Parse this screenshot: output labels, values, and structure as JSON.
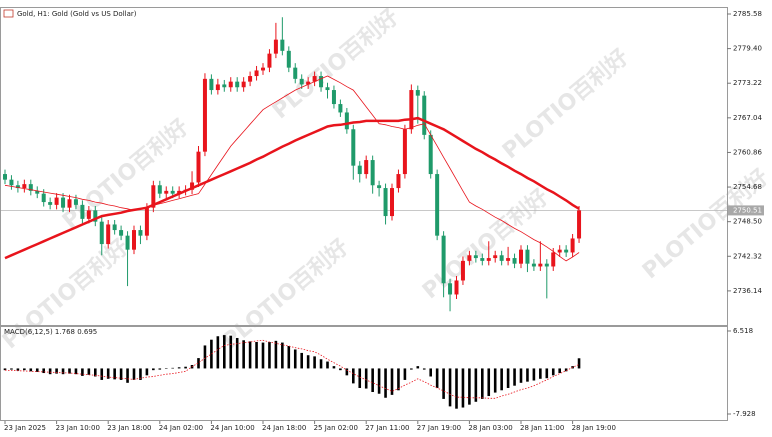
{
  "watermark": {
    "brand": "PLOTIO",
    "name": "百利好"
  },
  "chart_data": [
    {
      "type": "candlestick",
      "title": "Gold, H1: Gold (Gold vs US Dollar)",
      "categories": [
        "23 Jan 2025",
        null,
        null,
        null,
        null,
        null,
        null,
        null,
        "23 Jan 10:00",
        null,
        null,
        null,
        null,
        null,
        null,
        null,
        "23 Jan 18:00",
        null,
        null,
        null,
        null,
        null,
        null,
        null,
        "24 Jan 02:00",
        null,
        null,
        null,
        null,
        null,
        null,
        null,
        "24 Jan 10:00",
        null,
        null,
        null,
        null,
        null,
        null,
        null,
        "24 Jan 18:00",
        null,
        null,
        null,
        null,
        null,
        null,
        null,
        "25 Jan 02:00",
        null,
        null,
        null,
        null,
        null,
        null,
        null,
        "27 Jan 11:00",
        null,
        null,
        null,
        null,
        null,
        null,
        null,
        "27 Jan 19:00",
        null,
        null,
        null,
        null,
        null,
        null,
        null,
        "28 Jan 03:00",
        null,
        null,
        null,
        null,
        null,
        null,
        null,
        "28 Jan 11:00",
        null,
        null,
        null,
        null,
        null,
        null,
        null,
        "28 Jan 19:00",
        null
      ],
      "open": [
        2757.0,
        2756.0,
        2755.0,
        2754.5,
        2755.2,
        2754.0,
        2753.5,
        2752.0,
        2751.5,
        2752.8,
        2751.0,
        2752.5,
        2751.5,
        2749.0,
        2750.5,
        2748.5,
        2744.5,
        2748.0,
        2747.0,
        2746.0,
        2743.5,
        2747.0,
        2746.0,
        2751.0,
        2755.0,
        2753.5,
        2754.0,
        2753.5,
        2754.0,
        2754.2,
        2755.5,
        2761.0,
        2774.0,
        2772.0,
        2773.0,
        2772.5,
        2773.5,
        2772.5,
        2773.5,
        2774.5,
        2775.5,
        2776.0,
        2778.5,
        2781.0,
        2779.0,
        2776.0,
        2774.0,
        2773.0,
        2773.5,
        2774.5,
        2772.5,
        2772.0,
        2769.5,
        2768.0,
        2765.0,
        2758.5,
        2757.0,
        2759.5,
        2755.0,
        2754.5,
        2749.5,
        2754.5,
        2757.0,
        2765.0,
        2772.0,
        2771.0,
        2764.0,
        2757.0,
        2746.0,
        2737.5,
        2735.5,
        2738.0,
        2741.5,
        2742.5,
        2742.0,
        2741.5,
        2742.0,
        2742.5,
        2741.5,
        2742.0,
        2741.0,
        2743.5,
        2741.0,
        2740.5,
        2741.0,
        2740.5,
        2743.0,
        2743.5,
        2743.0,
        2745.5
      ],
      "high": [
        2757.8,
        2756.8,
        2755.8,
        2756.0,
        2756.0,
        2754.8,
        2754.3,
        2752.8,
        2753.6,
        2753.6,
        2753.3,
        2753.3,
        2752.3,
        2751.3,
        2751.3,
        2749.3,
        2748.8,
        2748.8,
        2747.8,
        2746.8,
        2747.8,
        2747.8,
        2751.8,
        2755.8,
        2755.8,
        2754.8,
        2754.8,
        2754.8,
        2755.0,
        2757.5,
        2762.0,
        2775.0,
        2774.8,
        2774.0,
        2773.8,
        2774.3,
        2774.3,
        2774.3,
        2775.3,
        2776.3,
        2776.8,
        2779.3,
        2784.0,
        2785.0,
        2779.8,
        2776.8,
        2774.8,
        2774.3,
        2775.3,
        2775.3,
        2773.3,
        2772.8,
        2770.3,
        2768.8,
        2765.8,
        2759.3,
        2760.3,
        2760.3,
        2755.8,
        2755.3,
        2755.3,
        2757.8,
        2765.8,
        2773.0,
        2772.8,
        2771.8,
        2764.8,
        2757.8,
        2746.8,
        2738.3,
        2738.8,
        2742.3,
        2743.3,
        2743.3,
        2742.8,
        2745.0,
        2743.3,
        2743.3,
        2744.0,
        2742.8,
        2744.3,
        2744.3,
        2741.8,
        2745.0,
        2741.8,
        2743.8,
        2744.3,
        2744.3,
        2746.3,
        2751.3
      ],
      "low": [
        2755.2,
        2754.2,
        2753.7,
        2753.7,
        2753.2,
        2752.7,
        2751.2,
        2750.7,
        2750.7,
        2750.2,
        2750.2,
        2750.7,
        2748.2,
        2748.2,
        2747.7,
        2742.5,
        2743.7,
        2746.2,
        2745.2,
        2737.0,
        2742.7,
        2744.5,
        2745.2,
        2750.2,
        2752.7,
        2752.7,
        2752.7,
        2752.7,
        2753.2,
        2753.4,
        2754.7,
        2760.2,
        2771.2,
        2771.2,
        2771.7,
        2771.7,
        2771.7,
        2771.7,
        2772.7,
        2773.7,
        2774.7,
        2775.2,
        2777.7,
        2778.2,
        2775.2,
        2773.2,
        2772.2,
        2772.2,
        2772.7,
        2771.7,
        2770.5,
        2768.7,
        2767.2,
        2764.2,
        2756.0,
        2755.5,
        2756.2,
        2753.5,
        2753.0,
        2748.0,
        2748.7,
        2753.7,
        2756.2,
        2764.2,
        2766.0,
        2763.2,
        2756.2,
        2745.2,
        2735.0,
        2732.5,
        2734.7,
        2737.2,
        2740.7,
        2741.2,
        2740.7,
        2740.7,
        2741.2,
        2740.7,
        2740.7,
        2740.2,
        2740.2,
        2739.5,
        2739.7,
        2739.7,
        2734.8,
        2739.7,
        2742.2,
        2742.2,
        2742.2,
        2744.7
      ],
      "close": [
        2756.0,
        2755.0,
        2754.5,
        2755.2,
        2754.0,
        2753.5,
        2752.0,
        2751.5,
        2752.8,
        2751.0,
        2752.5,
        2751.5,
        2749.0,
        2750.5,
        2748.5,
        2744.5,
        2748.0,
        2747.0,
        2746.0,
        2743.5,
        2747.0,
        2746.0,
        2751.0,
        2755.0,
        2753.5,
        2754.0,
        2753.5,
        2754.0,
        2754.2,
        2755.5,
        2761.0,
        2774.0,
        2772.0,
        2773.0,
        2772.5,
        2773.5,
        2772.5,
        2773.5,
        2774.5,
        2775.5,
        2776.0,
        2778.5,
        2781.0,
        2779.0,
        2776.0,
        2774.0,
        2773.0,
        2773.5,
        2774.5,
        2772.5,
        2772.0,
        2769.5,
        2768.0,
        2765.0,
        2758.5,
        2757.0,
        2759.5,
        2755.0,
        2754.5,
        2749.5,
        2754.5,
        2757.0,
        2765.0,
        2772.0,
        2771.0,
        2764.0,
        2757.0,
        2746.0,
        2737.5,
        2735.5,
        2738.0,
        2741.5,
        2742.5,
        2742.0,
        2741.5,
        2742.0,
        2742.5,
        2741.5,
        2742.0,
        2741.0,
        2743.5,
        2741.0,
        2740.5,
        2741.0,
        2740.5,
        2743.0,
        2743.5,
        2743.0,
        2745.5,
        2750.51
      ],
      "up_color": "#e8141c",
      "down_color": "#1f9a6a",
      "lines": [
        {
          "color": "#e8141c",
          "width": 0.8,
          "values": [
            2755,
            2754.8,
            2754.6,
            2754.4,
            2754.2,
            2754,
            2753.8,
            2753.6,
            2753.4,
            2753.2,
            2753,
            2752.8,
            2752.5,
            2752.3,
            2752,
            2751.8,
            2751.5,
            2751.3,
            2751,
            2750.8,
            2750.5,
            2750.8,
            2751.1,
            2751.4,
            2751.7,
            2752,
            2752.3,
            2752.6,
            2752.9,
            2753.2,
            2753.5,
            2755.2,
            2756.9,
            2758.6,
            2760.3,
            2762,
            2763.3,
            2764.6,
            2765.9,
            2767.2,
            2768.5,
            2769.2,
            2769.9,
            2770.6,
            2771.3,
            2772,
            2772.5,
            2773,
            2773.5,
            2774,
            2774.5,
            2773.9,
            2773.3,
            2772.6,
            2772,
            2770.5,
            2769,
            2767.5,
            2766,
            2765.8,
            2765.5,
            2765.3,
            2765,
            2765.3,
            2765.7,
            2766,
            2764,
            2762,
            2760,
            2758,
            2756,
            2754,
            2752,
            2751.3,
            2750.7,
            2750,
            2749.3,
            2748.7,
            2748,
            2747.3,
            2746.7,
            2746,
            2745.3,
            2744.7,
            2744,
            2743.2,
            2742.3,
            2741.5,
            2742.2,
            2743
          ]
        },
        {
          "color": "#e8141c",
          "width": 2.5,
          "values": [
            2742,
            2742.5,
            2743,
            2743.5,
            2744,
            2744.5,
            2745,
            2745.5,
            2746,
            2746.5,
            2747,
            2747.5,
            2748,
            2748.5,
            2749,
            2749.5,
            2749.7,
            2749.9,
            2750.1,
            2750.4,
            2750.6,
            2750.8,
            2751,
            2751.5,
            2752,
            2752.5,
            2753,
            2753.5,
            2754,
            2754.5,
            2755,
            2755.5,
            2756,
            2756.5,
            2757,
            2757.5,
            2758,
            2758.5,
            2759,
            2759.6,
            2760.1,
            2760.7,
            2761.3,
            2761.9,
            2762.4,
            2763,
            2763.5,
            2764,
            2764.5,
            2765,
            2765.5,
            2765.7,
            2765.8,
            2766,
            2766.2,
            2766.3,
            2766.5,
            2766.5,
            2766.5,
            2766.5,
            2766.5,
            2766.5,
            2766.7,
            2766.8,
            2767,
            2766.5,
            2766,
            2765.5,
            2765,
            2764.3,
            2763.6,
            2762.9,
            2762.2,
            2761.5,
            2760.9,
            2760.2,
            2759.6,
            2758.9,
            2758.3,
            2757.6,
            2757,
            2756.3,
            2755.7,
            2755,
            2754.3,
            2753.7,
            2753,
            2752.3,
            2751.5,
            2750.8
          ]
        }
      ],
      "current_price": 2750.51,
      "ylim": [
        2730.05,
        2786.65
      ],
      "yticks": [
        2785.58,
        {
          "value": 2779.4,
          "label": "2779.40"
        },
        2773.22,
        2767.04,
        2760.86,
        2754.68,
        {
          "value": 2748.5,
          "label": "2748.50"
        },
        2742.32,
        2736.14
      ]
    },
    {
      "type": "bar",
      "title": "MACD(6,12,5) 1.768 0.695",
      "color": "#000000",
      "values": [
        -0.3,
        -0.2,
        -0.4,
        -0.3,
        -0.5,
        -0.6,
        -0.8,
        -1.0,
        -0.9,
        -1.0,
        -0.9,
        -1.0,
        -1.3,
        -1.1,
        -1.4,
        -2.0,
        -1.8,
        -1.9,
        -2.0,
        -2.5,
        -2.0,
        -2.0,
        -1.2,
        -0.3,
        -0.2,
        0.0,
        0.1,
        0.2,
        0.3,
        0.6,
        1.8,
        4.0,
        5.0,
        5.6,
        5.8,
        5.7,
        5.3,
        4.9,
        4.7,
        4.6,
        4.5,
        4.6,
        4.8,
        4.5,
        3.9,
        3.3,
        2.7,
        2.3,
        2.1,
        1.6,
        1.2,
        0.4,
        -0.3,
        -1.2,
        -2.6,
        -3.4,
        -3.5,
        -4.1,
        -4.4,
        -5.1,
        -4.6,
        -3.8,
        -2.0,
        -0.2,
        0.4,
        -0.2,
        -1.4,
        -3.4,
        -5.3,
        -6.6,
        -7.0,
        -6.8,
        -6.3,
        -5.8,
        -5.3,
        -4.8,
        -4.2,
        -3.8,
        -3.4,
        -3.0,
        -2.5,
        -2.3,
        -2.1,
        -1.8,
        -1.7,
        -1.2,
        -0.8,
        -0.5,
        0.4,
        1.768
      ],
      "signal": {
        "color": "#e8141c",
        "values": [
          -0.3,
          -0.35,
          -0.4,
          -0.45,
          -0.5,
          -0.55,
          -0.6,
          -0.65,
          -0.7,
          -0.75,
          -0.8,
          -0.9,
          -1.0,
          -1.1,
          -1.2,
          -1.35,
          -1.5,
          -1.6,
          -1.7,
          -1.8,
          -1.9,
          -1.7,
          -1.5,
          -1.4,
          -1.2,
          -1.0,
          -0.9,
          -0.7,
          -0.5,
          0.3,
          1.0,
          1.8,
          2.5,
          3.3,
          4.0,
          4.2,
          4.3,
          4.5,
          4.6,
          4.8,
          4.9,
          4.6,
          4.4,
          4.1,
          3.9,
          3.6,
          3.4,
          3.1,
          2.9,
          2.3,
          1.6,
          1.0,
          0.4,
          -0.3,
          -0.9,
          -1.5,
          -2.0,
          -2.5,
          -3.0,
          -3.5,
          -4.0,
          -3.5,
          -2.9,
          -2.4,
          -1.8,
          -2.3,
          -2.9,
          -3.4,
          -3.9,
          -4.5,
          -5.0,
          -5.0,
          -5.1,
          -5.1,
          -5.1,
          -5.2,
          -5.2,
          -4.8,
          -4.5,
          -4.1,
          -3.7,
          -3.4,
          -3.0,
          -2.5,
          -2.0,
          -1.4,
          -0.9,
          -0.4,
          0.2,
          0.695
        ]
      },
      "ylim": [
        -8.97,
        7.21
      ],
      "yticks": [
        6.518,
        -7.928
      ]
    }
  ]
}
